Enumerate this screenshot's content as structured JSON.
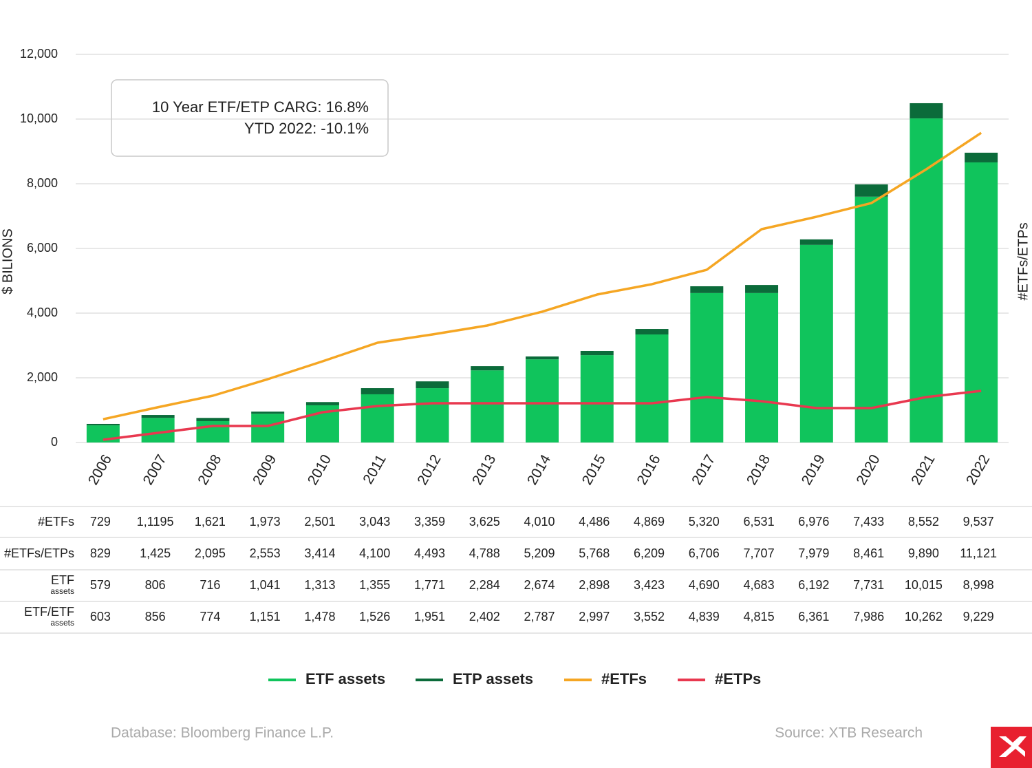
{
  "chart_data": {
    "type": "bar",
    "annotation": [
      "10 Year ETF/ETP CARG: 16.8%",
      "YTD 2022: -10.1%"
    ],
    "ylabel": "$ BILIONS",
    "y2label": "#ETFs/ETPs",
    "categories": [
      "2006",
      "2007",
      "2008",
      "2009",
      "2010",
      "2011",
      "2012",
      "2013",
      "2014",
      "2015",
      "2016",
      "2017",
      "2018",
      "2019",
      "2020",
      "2021",
      "2022"
    ],
    "series": [
      {
        "name": "ETF assets",
        "type": "bar",
        "color": "#10c45c",
        "values": [
          530,
          760,
          660,
          890,
          1150,
          1490,
          1680,
          2230,
          2570,
          2700,
          3340,
          4620,
          4620,
          6110,
          7600,
          10020,
          8660
        ]
      },
      {
        "name": "ETP assets",
        "type": "bar",
        "color": "#0b6b3a",
        "values": [
          45,
          90,
          100,
          65,
          100,
          190,
          210,
          130,
          90,
          130,
          170,
          210,
          250,
          170,
          380,
          470,
          300
        ]
      },
      {
        "name": "#ETFs",
        "type": "line",
        "axis": "y2",
        "color": "#f5a623",
        "values": [
          720,
          1090,
          1447,
          1957,
          2511,
          3085,
          3340,
          3617,
          4043,
          4574,
          4894,
          5340,
          6596,
          6979,
          7404,
          8447,
          9574
        ]
      },
      {
        "name": "#ETPs",
        "type": "line",
        "axis": "y2",
        "color": "#e8384f",
        "values": [
          85,
          298,
          511,
          511,
          936,
          1128,
          1213,
          1213,
          1213,
          1213,
          1213,
          1404,
          1277,
          1064,
          1064,
          1404,
          1596
        ]
      }
    ],
    "ylim": [
      0,
      12000
    ],
    "yticks": [
      0,
      {
        "value": 2000,
        "label": "2,000"
      },
      {
        "value": 4000,
        "label": "4,000"
      },
      {
        "value": 6000,
        "label": "6,000"
      },
      {
        "value": 8000,
        "label": "8,000"
      },
      {
        "value": 10000,
        "label": "10,000"
      },
      {
        "value": 12000,
        "label": "12,000"
      }
    ],
    "y2lim": [
      0,
      12000
    ],
    "grid": true,
    "legend": "bottom"
  },
  "table": {
    "rows": [
      {
        "label": "#ETFs",
        "cells": [
          "729",
          "1,1195",
          "1,621",
          "1,973",
          "2,501",
          "3,043",
          "3,359",
          "3,625",
          "4,010",
          "4,486",
          "4,869",
          "5,320",
          "6,531",
          "6,976",
          "7,433",
          "8,552",
          "9,537"
        ]
      },
      {
        "label": "#ETFs/ETPs",
        "cells": [
          "829",
          "1,425",
          "2,095",
          "2,553",
          "3,414",
          "4,100",
          "4,493",
          "4,788",
          "5,209",
          "5,768",
          "6,209",
          "6,706",
          "7,707",
          "7,979",
          "8,461",
          "9,890",
          "11,121"
        ]
      },
      {
        "label": "ETF",
        "sublabel": "assets",
        "cells": [
          "579",
          "806",
          "716",
          "1,041",
          "1,313",
          "1,355",
          "1,771",
          "2,284",
          "2,674",
          "2,898",
          "3,423",
          "4,690",
          "4,683",
          "6,192",
          "7,731",
          "10,015",
          "8,998"
        ]
      },
      {
        "label": "ETF/ETF",
        "sublabel": "assets",
        "cells": [
          "603",
          "856",
          "774",
          "1,151",
          "1,478",
          "1,526",
          "1,951",
          "2,402",
          "2,787",
          "2,997",
          "3,552",
          "4,839",
          "4,815",
          "6,361",
          "7,986",
          "10,262",
          "9,229"
        ]
      }
    ]
  },
  "footer": {
    "database": "Database: Bloomberg Finance L.P.",
    "source": "Source: XTB Research"
  }
}
